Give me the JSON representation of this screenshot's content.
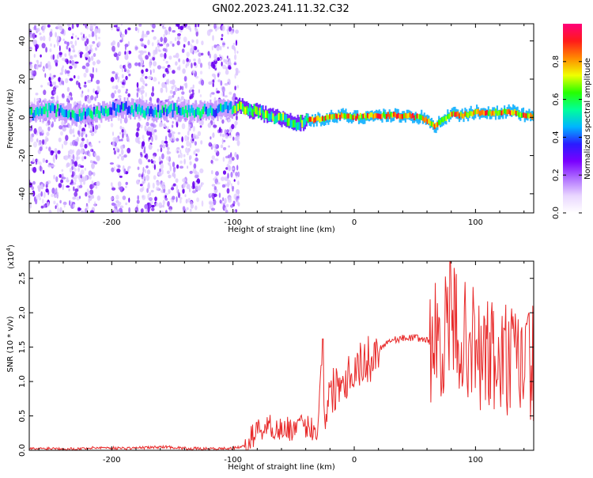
{
  "figure": {
    "title": "GN02.2023.241.11.32.C32"
  },
  "chart_data": [
    {
      "type": "heatmap",
      "xlabel": "Height of straight line (km)",
      "ylabel": "Frequency (Hz)",
      "xlim": [
        -268,
        148
      ],
      "ylim": [
        -50,
        49
      ],
      "xticks": [
        -200,
        -100,
        0,
        100
      ],
      "yticks": [
        -40,
        -20,
        0,
        20,
        40
      ],
      "colorbar": {
        "label": "Normalized spectral amplitude",
        "range": [
          0,
          1
        ],
        "ticks": [
          "0.0",
          "0.2",
          "0.4",
          "0.6",
          "0.8"
        ],
        "colors": [
          "#ffffff",
          "#e9d6ff",
          "#b070ff",
          "#7a00ff",
          "#2a1cff",
          "#00b4ff",
          "#00ff9a",
          "#26ff00",
          "#f0ff00",
          "#ff8a00",
          "#ff1a1a",
          "#ff007a"
        ]
      },
      "main_ridge": {
        "x": [
          -268,
          -250,
          -230,
          -210,
          -190,
          -170,
          -150,
          -130,
          -110,
          -95,
          -80,
          -65,
          -55,
          -48,
          -40,
          -30,
          -20,
          -10,
          0,
          20,
          40,
          55,
          62,
          66,
          70,
          80,
          90,
          100,
          110,
          120,
          130,
          140,
          148
        ],
        "y": [
          2,
          4,
          1,
          3,
          5,
          3,
          4,
          3,
          4,
          6,
          3,
          0,
          -2,
          -3,
          -2,
          -1,
          0,
          1,
          0,
          1,
          1,
          0,
          -3,
          -5,
          -2,
          2,
          1,
          3,
          2,
          3,
          3,
          1,
          0
        ]
      },
      "noise_bands_km": [
        [
          -268,
          -210
        ],
        [
          -200,
          -185
        ],
        [
          -180,
          -160
        ],
        [
          -160,
          -125
        ],
        [
          -120,
          -95
        ]
      ]
    },
    {
      "type": "line",
      "xlabel": "Height of straight line (km)",
      "ylabel": "SNR (10 * v/v)",
      "multiplier_base": "(x10",
      "multiplier_exp": "4",
      "xlim": [
        -268,
        148
      ],
      "ylim": [
        0,
        2.75
      ],
      "xticks": [
        -200,
        -100,
        0,
        100
      ],
      "yticks": [
        "0.0",
        "0.5",
        "1.0",
        "1.5",
        "2.0",
        "2.5"
      ],
      "line_color": "#e82a2a",
      "series": [
        {
          "x": [
            -268,
            -250,
            -230,
            -210,
            -190,
            -170,
            -155,
            -140,
            -120,
            -100,
            -90,
            -80,
            -70,
            -60,
            -50,
            -40,
            -30,
            -27,
            -24,
            -20,
            -15,
            -10,
            -5,
            0,
            5,
            10,
            15,
            20,
            25,
            30,
            40,
            50,
            60,
            65,
            70,
            75,
            80,
            85,
            90,
            95,
            100,
            105,
            110,
            115,
            120,
            125,
            130,
            135,
            140,
            145,
            148
          ],
          "y": [
            0.02,
            0.03,
            0.02,
            0.04,
            0.03,
            0.04,
            0.05,
            0.03,
            0.02,
            0.03,
            0.06,
            0.3,
            0.35,
            0.3,
            0.32,
            0.35,
            0.3,
            1.3,
            0.55,
            0.8,
            0.95,
            1.05,
            1.1,
            1.2,
            1.25,
            1.3,
            1.35,
            1.45,
            1.55,
            1.6,
            1.63,
            1.64,
            1.6,
            1.55,
            1.6,
            1.7,
            1.9,
            1.8,
            1.5,
            1.7,
            1.4,
            1.3,
            1.4,
            1.3,
            1.2,
            1.3,
            1.25,
            1.2,
            1.3,
            1.25,
            1.3
          ]
        }
      ]
    }
  ]
}
